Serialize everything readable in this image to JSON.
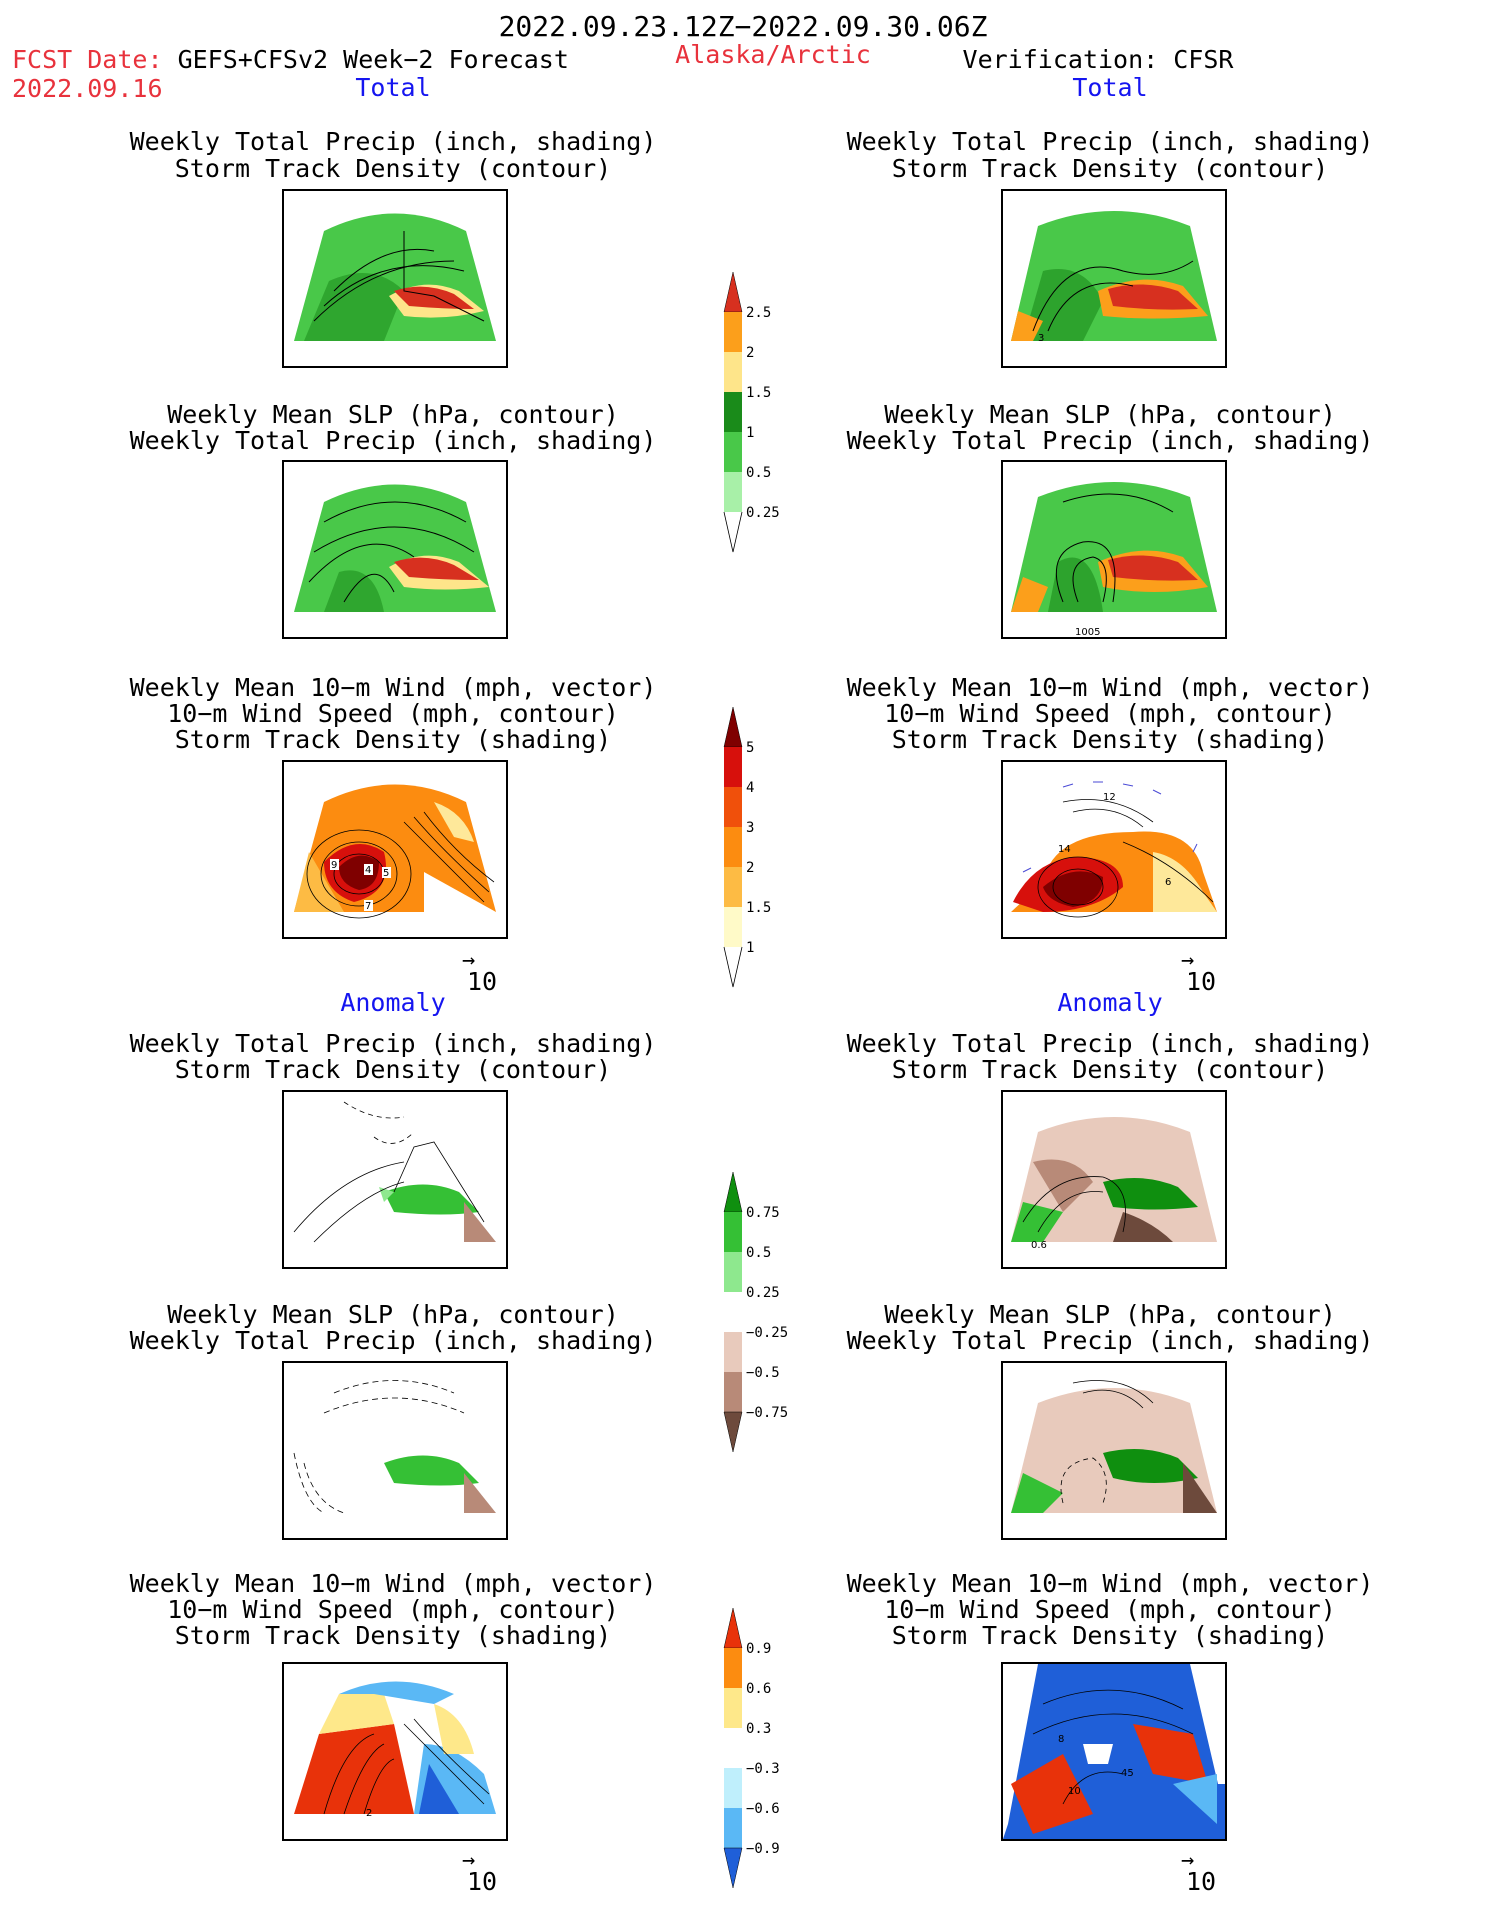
{
  "header": {
    "date_range": "2022.09.23.12Z−2022.09.30.06Z",
    "fcst_label": "FCST Date:",
    "model": "GEFS+CFSv2 Week−2 Forecast",
    "fcst_date": "2022.09.16",
    "region": "Alaska/Arctic",
    "verification": "Verification: CFSR"
  },
  "sections": {
    "total": "Total",
    "anomaly": "Anomaly"
  },
  "captions": {
    "precip_storm": [
      "Weekly Total Precip (inch, shading)",
      "Storm Track Density (contour)"
    ],
    "slp_precip": [
      "Weekly Mean SLP (hPa, contour)",
      "Weekly Total Precip (inch, shading)"
    ],
    "wind_storm": [
      "Weekly Mean 10−m Wind (mph, vector)",
      "10−m Wind Speed (mph, contour)",
      "Storm Track Density (shading)"
    ]
  },
  "vector_ref": "10",
  "colorbars": {
    "precip_total": {
      "ticks": [
        "2.5",
        "2",
        "1.5",
        "1",
        "0.5",
        "0.25"
      ],
      "colors": [
        "#d7301f",
        "#fc9f1b",
        "#fee58a",
        "#1a8b1a",
        "#49c849",
        "#a8f0a8"
      ]
    },
    "storm_total": {
      "ticks": [
        "5",
        "4",
        "3",
        "2",
        "1.5",
        "1"
      ],
      "colors": [
        "#7f0000",
        "#d7100c",
        "#f0500b",
        "#fc8c10",
        "#fdbb44",
        "#fee89a",
        "#fffac8"
      ]
    },
    "precip_anom": {
      "ticks": [
        "0.75",
        "0.5",
        "0.25",
        "−0.25",
        "−0.5",
        "−0.75"
      ],
      "colors": [
        "#0f8f0f",
        "#35c035",
        "#8ee88e",
        "#ffffff",
        "#e8cabc",
        "#b88a78",
        "#6d4a3c"
      ]
    },
    "storm_anom": {
      "ticks": [
        "0.9",
        "0.6",
        "0.3",
        "−0.3",
        "−0.6",
        "−0.9"
      ],
      "colors": [
        "#e8320a",
        "#fc8c10",
        "#fee88a",
        "#ffffff",
        "#bfeffc",
        "#5ab8f5",
        "#1f5fd8"
      ]
    }
  },
  "panel_labels": {
    "precip_obs_contour": "3",
    "slp_obs_contour": "1005",
    "wind_fcst_labels": [
      "9",
      "4",
      "5",
      "7"
    ],
    "wind_obs_labels": [
      "12",
      "14",
      "6"
    ],
    "anom_precip_obs_contour": "0.6",
    "anom_wind_fcst_label": "2",
    "anom_wind_obs_labels": [
      "8",
      "10",
      "45"
    ]
  }
}
